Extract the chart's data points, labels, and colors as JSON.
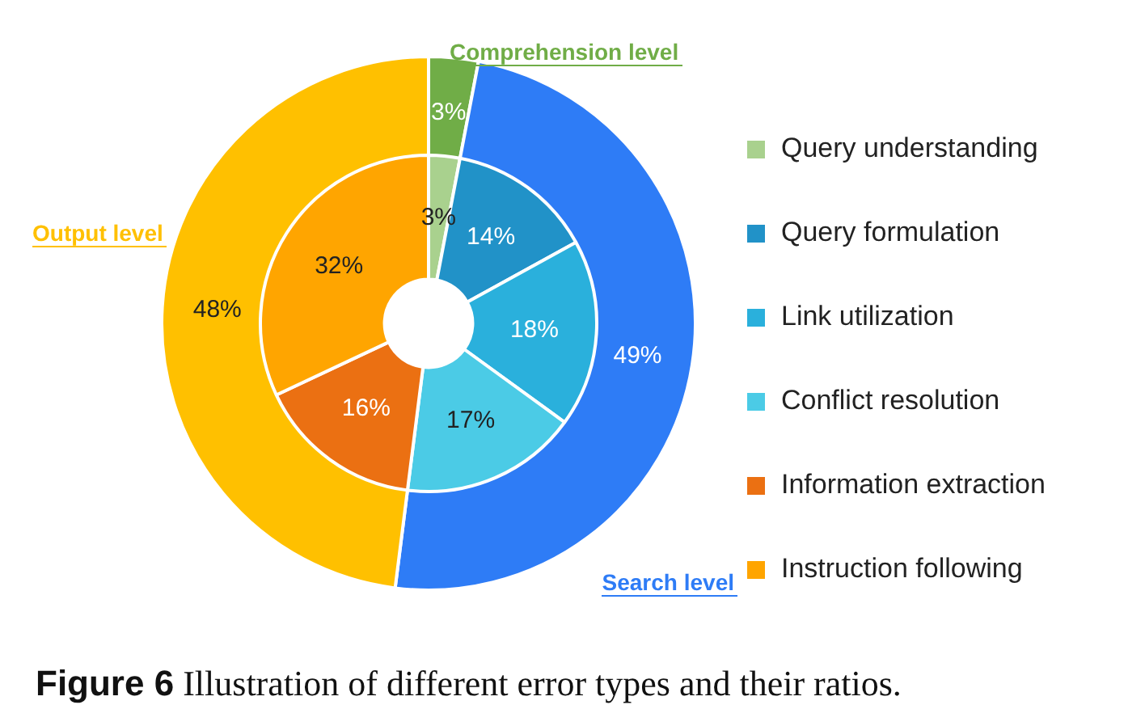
{
  "chart_data": [
    {
      "type": "donut",
      "categories": [
        "Comprehension level",
        "Search level",
        "Output level"
      ],
      "values": [
        3,
        49,
        48
      ],
      "colors": [
        "#70ad47",
        "#2e7cf6",
        "#ffc000"
      ],
      "value_labels": [
        "3%",
        "49%",
        "48%"
      ],
      "annotations": [
        "Figure 6 Illustration of different error types and their ratios."
      ]
    },
    {
      "type": "donut",
      "categories": [
        "Query understanding",
        "Query formulation",
        "Link utilization",
        "Conflict resolution",
        "Information extraction",
        "Instruction following"
      ],
      "values": [
        3,
        14,
        18,
        17,
        16,
        32
      ],
      "colors": [
        "#a9d18e",
        "#2192c8",
        "#2ab0dc",
        "#4bcbe6",
        "#eb7012",
        "#ffa500"
      ],
      "value_labels": [
        "3%",
        "14%",
        "18%",
        "17%",
        "16%",
        "32%"
      ],
      "legend": "right"
    }
  ]
}
